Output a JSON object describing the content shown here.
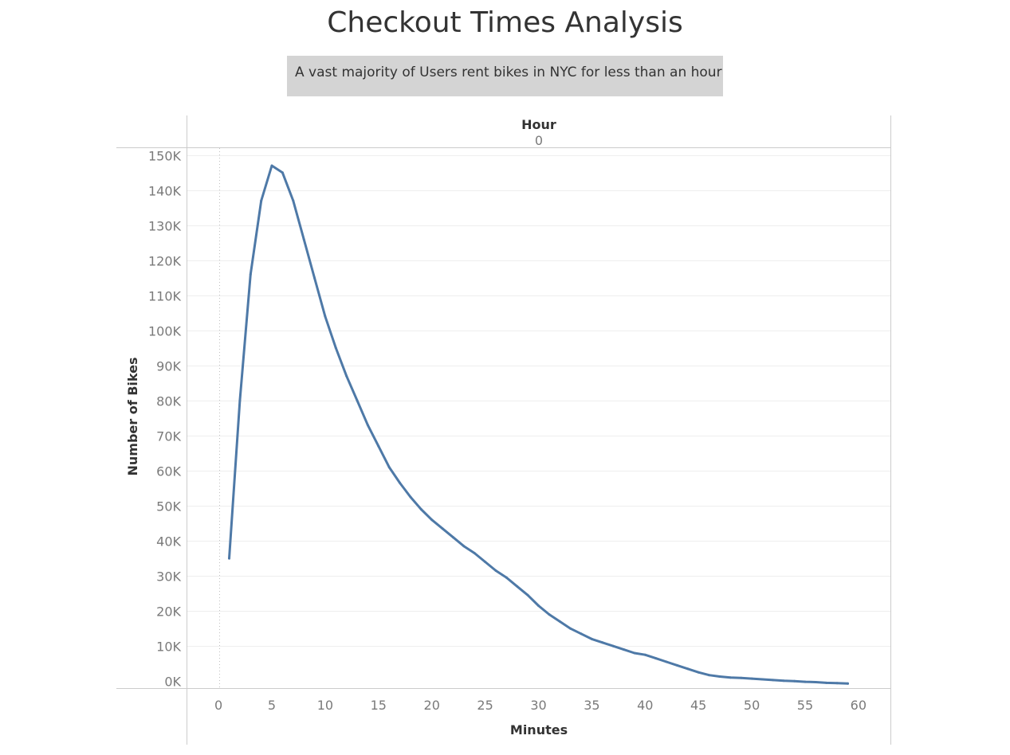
{
  "title": "Checkout Times Analysis",
  "subtitle": "A vast majority of Users rent bikes in NYC for less than an hour",
  "colors": {
    "line": "#4e79a7",
    "subtitle_bg": "#d4d4d4",
    "grid": "#eeeeee",
    "axis": "#cccccc"
  },
  "chart_data": {
    "type": "line",
    "title": "Checkout Times Analysis",
    "header_label": "Hour",
    "header_value": "0",
    "xlabel": "Minutes",
    "ylabel": "Number of Bikes",
    "xlim": [
      -3,
      63
    ],
    "ylim": [
      -2000,
      152000
    ],
    "xticks": [
      0,
      5,
      10,
      15,
      20,
      25,
      30,
      35,
      40,
      45,
      50,
      55,
      60
    ],
    "yticks": [
      0,
      10000,
      20000,
      30000,
      40000,
      50000,
      60000,
      70000,
      80000,
      90000,
      100000,
      110000,
      120000,
      130000,
      140000,
      150000
    ],
    "ytick_labels": [
      "0K",
      "10K",
      "20K",
      "30K",
      "40K",
      "50K",
      "60K",
      "70K",
      "80K",
      "90K",
      "100K",
      "110K",
      "120K",
      "130K",
      "140K",
      "150K"
    ],
    "grid": true,
    "series": [
      {
        "name": "",
        "x": [
          1,
          2,
          3,
          4,
          5,
          6,
          7,
          8,
          9,
          10,
          11,
          12,
          13,
          14,
          15,
          16,
          17,
          18,
          19,
          20,
          21,
          22,
          23,
          24,
          25,
          26,
          27,
          28,
          29,
          30,
          31,
          32,
          33,
          34,
          35,
          36,
          37,
          38,
          39,
          40,
          41,
          42,
          43,
          44,
          45,
          46,
          47,
          48,
          49,
          50,
          51,
          52,
          53,
          54,
          55,
          56,
          57,
          58,
          59
        ],
        "values": [
          35000,
          80000,
          116000,
          137000,
          147000,
          145000,
          137000,
          126000,
          115000,
          104000,
          95000,
          87000,
          80000,
          73000,
          67000,
          61000,
          56500,
          52500,
          49000,
          46000,
          43500,
          41000,
          38500,
          36500,
          34000,
          31500,
          29500,
          27000,
          24500,
          21500,
          19000,
          17000,
          15000,
          13500,
          12000,
          11000,
          10000,
          9000,
          8000,
          7500,
          6500,
          5500,
          4500,
          3500,
          2500,
          1700,
          1300,
          1000,
          900,
          700,
          500,
          300,
          100,
          0,
          -200,
          -300,
          -500,
          -600,
          -700
        ]
      }
    ]
  }
}
